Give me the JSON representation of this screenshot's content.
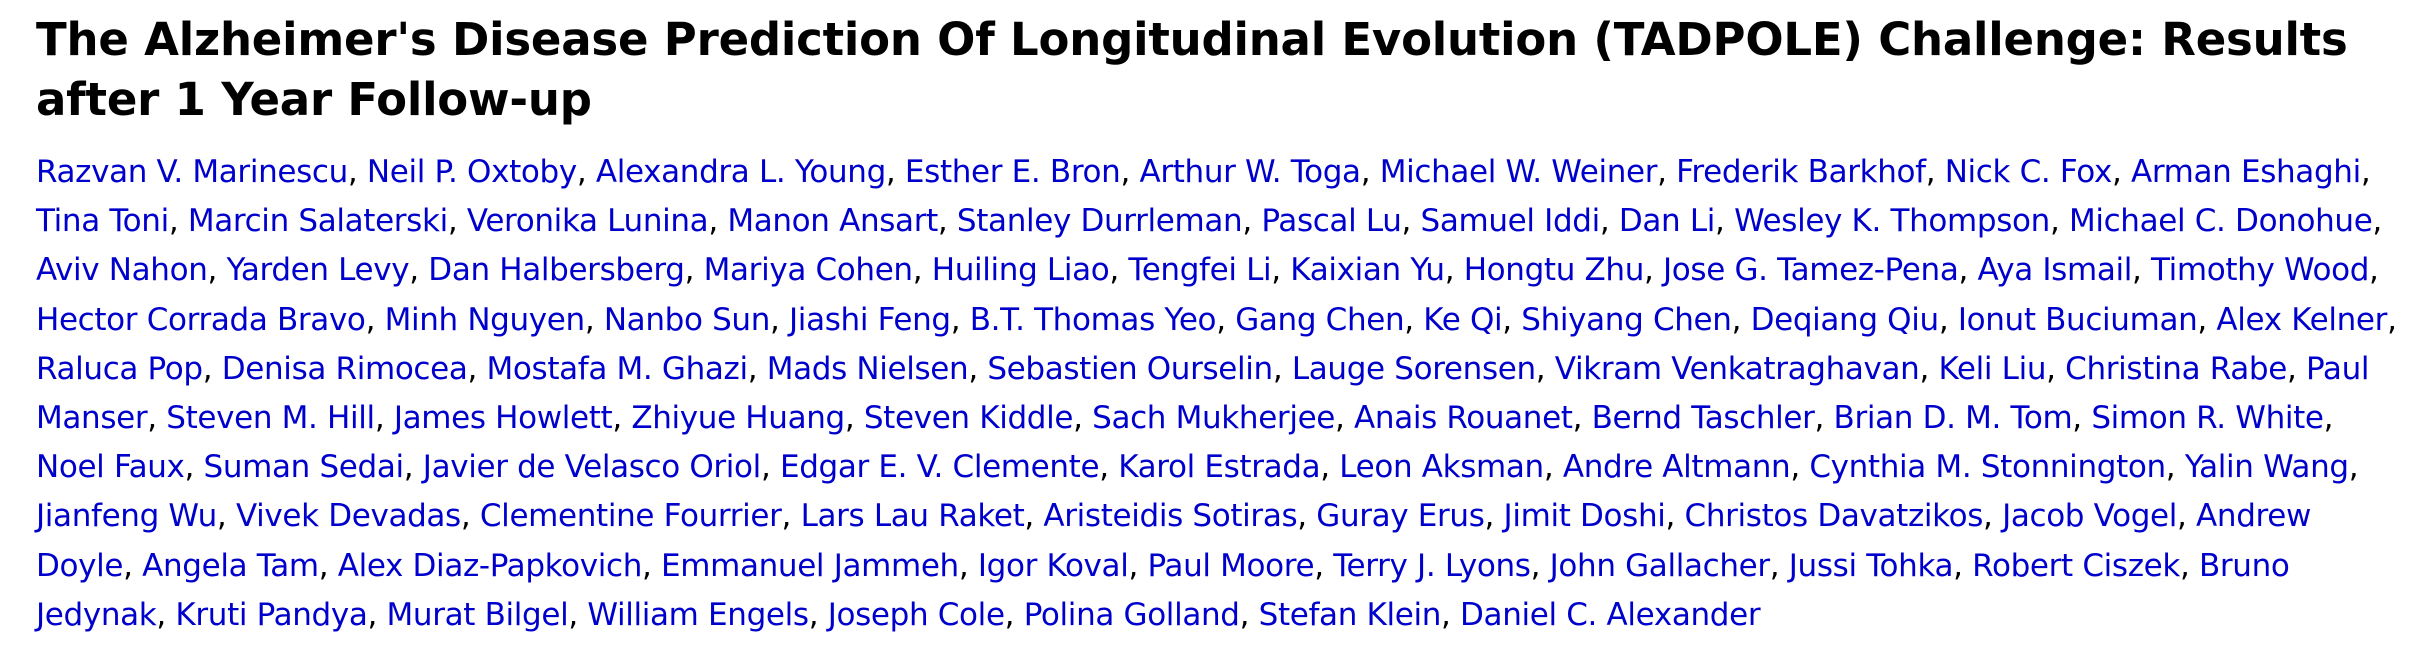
{
  "document": {
    "title": "The Alzheimer's Disease Prediction Of Longitudinal Evolution (TADPOLE) Challenge: Results after 1 Year Follow-up",
    "separator": ", ",
    "authors": [
      "Razvan V. Marinescu",
      "Neil P. Oxtoby",
      "Alexandra L. Young",
      "Esther E. Bron",
      "Arthur W. Toga",
      "Michael W. Weiner",
      "Frederik Barkhof",
      "Nick C. Fox",
      "Arman Eshaghi",
      "Tina Toni",
      "Marcin Salaterski",
      "Veronika Lunina",
      "Manon Ansart",
      "Stanley Durrleman",
      "Pascal Lu",
      "Samuel Iddi",
      "Dan Li",
      "Wesley K. Thompson",
      "Michael C. Donohue",
      "Aviv Nahon",
      "Yarden Levy",
      "Dan Halbersberg",
      "Mariya Cohen",
      "Huiling Liao",
      "Tengfei Li",
      "Kaixian Yu",
      "Hongtu Zhu",
      "Jose G. Tamez-Pena",
      "Aya Ismail",
      "Timothy Wood",
      "Hector Corrada Bravo",
      "Minh Nguyen",
      "Nanbo Sun",
      "Jiashi Feng",
      "B.T. Thomas Yeo",
      "Gang Chen",
      "Ke Qi",
      "Shiyang Chen",
      "Deqiang Qiu",
      "Ionut Buciuman",
      "Alex Kelner",
      "Raluca Pop",
      "Denisa Rimocea",
      "Mostafa M. Ghazi",
      "Mads Nielsen",
      "Sebastien Ourselin",
      "Lauge Sorensen",
      "Vikram Venkatraghavan",
      "Keli Liu",
      "Christina Rabe",
      "Paul Manser",
      "Steven M. Hill",
      "James Howlett",
      "Zhiyue Huang",
      "Steven Kiddle",
      "Sach Mukherjee",
      "Anais Rouanet",
      "Bernd Taschler",
      "Brian D. M. Tom",
      "Simon R. White",
      "Noel Faux",
      "Suman Sedai",
      "Javier de Velasco Oriol",
      "Edgar E. V. Clemente",
      "Karol Estrada",
      "Leon Aksman",
      "Andre Altmann",
      "Cynthia M. Stonnington",
      "Yalin Wang",
      "Jianfeng Wu",
      "Vivek Devadas",
      "Clementine Fourrier",
      "Lars Lau Raket",
      "Aristeidis Sotiras",
      "Guray Erus",
      "Jimit Doshi",
      "Christos Davatzikos",
      "Jacob Vogel",
      "Andrew Doyle",
      "Angela Tam",
      "Alex Diaz-Papkovich",
      "Emmanuel Jammeh",
      "Igor Koval",
      "Paul Moore",
      "Terry J. Lyons",
      "John Gallacher",
      "Jussi Tohka",
      "Robert Ciszek",
      "Bruno Jedynak",
      "Kruti Pandya",
      "Murat Bilgel",
      "William Engels",
      "Joseph Cole",
      "Polina Golland",
      "Stefan Klein",
      "Daniel C. Alexander"
    ],
    "colors": {
      "title": "#000000",
      "author_link": "#0000cc",
      "separator": "#000000",
      "background": "#ffffff"
    }
  }
}
